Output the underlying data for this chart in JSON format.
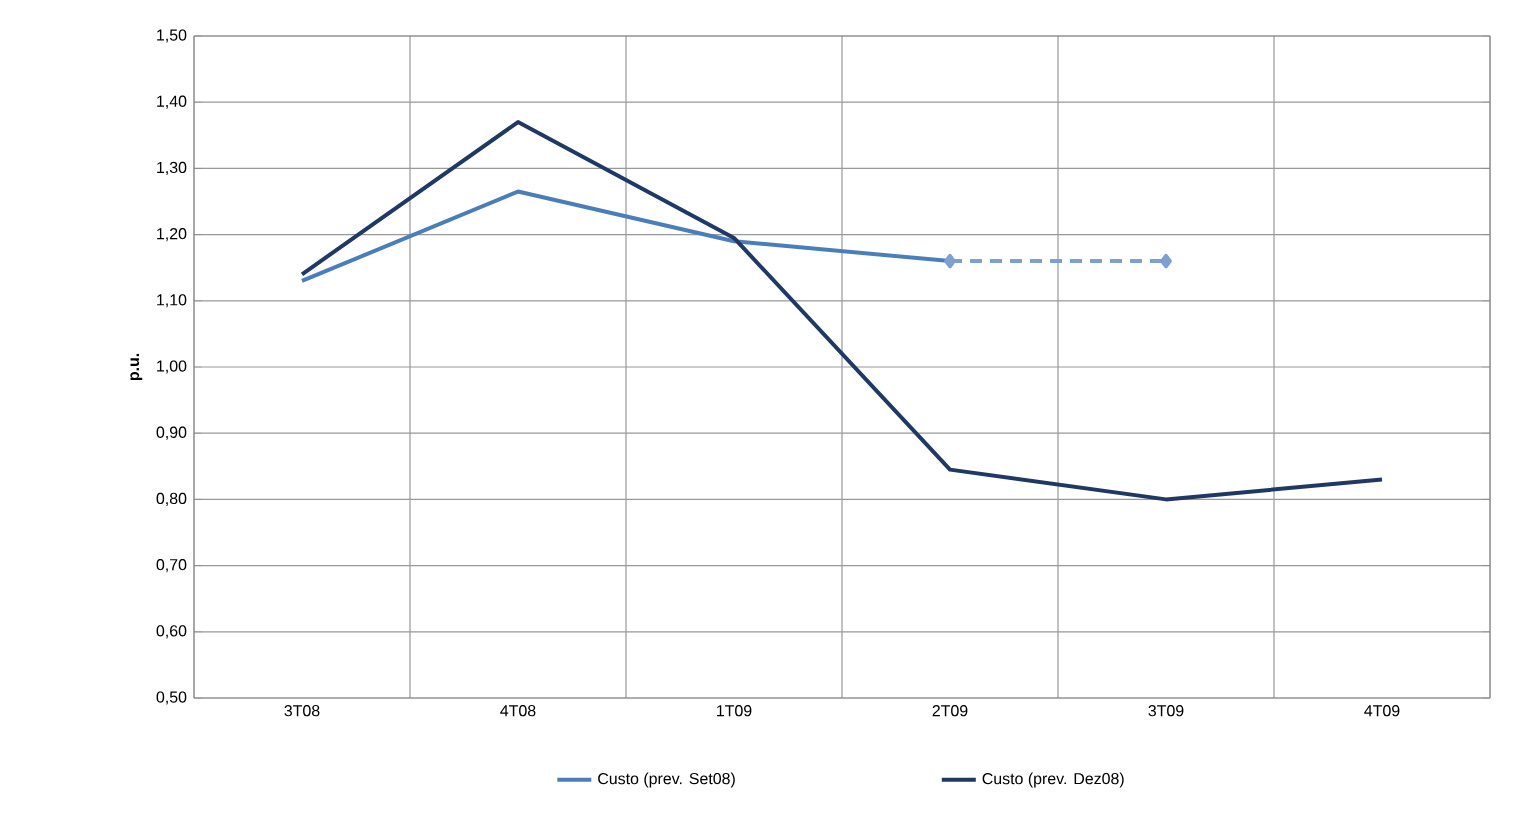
{
  "chart_data": {
    "type": "line",
    "ylabel": "p.u.",
    "categories": [
      "3T08",
      "4T08",
      "1T09",
      "2T09",
      "3T09",
      "4T09"
    ],
    "series": [
      {
        "name": "Custo (prev. Set08)",
        "color": "#4a7ebb",
        "values": [
          1.13,
          1.265,
          1.19,
          1.16,
          null,
          null
        ]
      },
      {
        "name": "Custo (prev. Dez08)",
        "color": "#1f3864",
        "values": [
          1.14,
          1.37,
          1.195,
          0.845,
          0.8,
          0.83
        ]
      },
      {
        "color": "#7f9fcf",
        "values": [
          null,
          null,
          null,
          1.16,
          1.16,
          null
        ],
        "line_style": "dashed",
        "marker": "diamond"
      }
    ],
    "ylim": [
      0.5,
      1.5
    ],
    "yticks": [
      {
        "value": 0.5,
        "label": "0,50"
      },
      {
        "value": 0.6,
        "label": "0,60"
      },
      {
        "value": 0.7,
        "label": "0,70"
      },
      {
        "value": 0.8,
        "label": "0,80"
      },
      {
        "value": 0.9,
        "label": "0,90"
      },
      {
        "value": 1.0,
        "label": "1,00"
      },
      {
        "value": 1.1,
        "label": "1,10"
      },
      {
        "value": 1.2,
        "label": "1,20"
      },
      {
        "value": 1.3,
        "label": "1,30"
      },
      {
        "value": 1.4,
        "label": "1,40"
      },
      {
        "value": 1.5,
        "label": "1,50"
      }
    ],
    "grid": true,
    "legend": "bottom"
  }
}
